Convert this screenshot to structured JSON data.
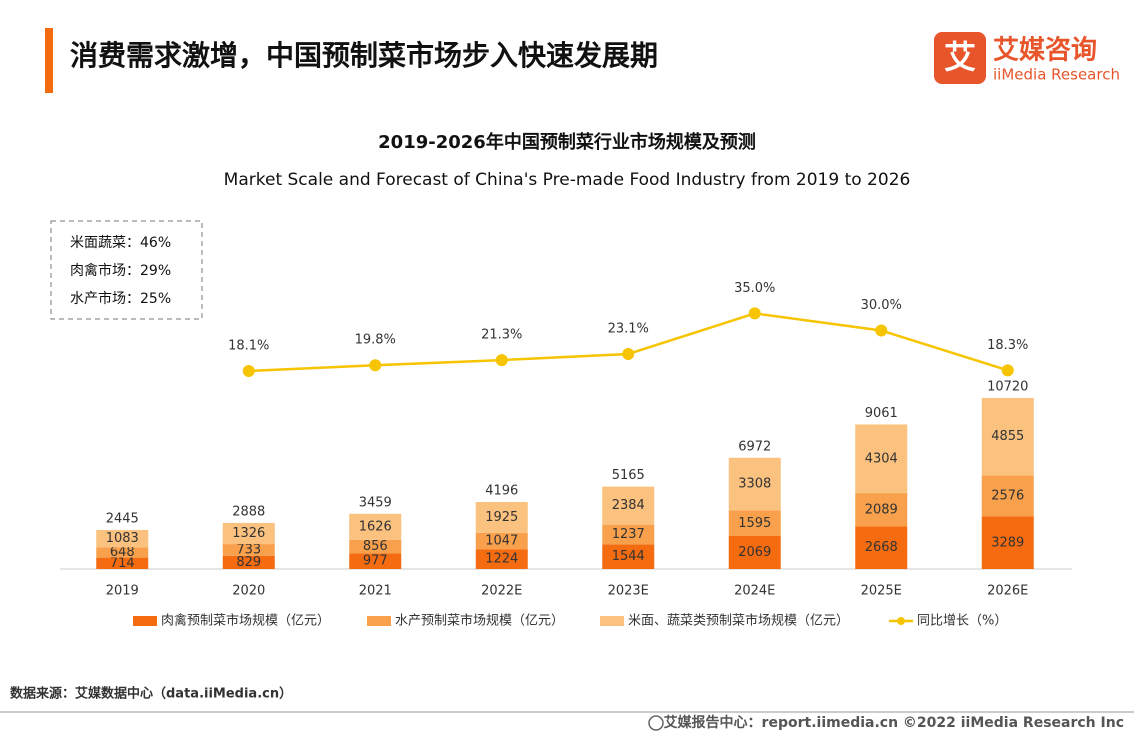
{
  "header": {
    "title": "消费需求激增，中国预制菜市场步入快速发展期",
    "logo_cn": "艾媒咨询",
    "logo_en": "iiMedia Research",
    "logo_mark": "艾"
  },
  "chart_data": {
    "type": "bar",
    "stacked": true,
    "title": "2019-2026年中国预制菜行业市场规模及预测",
    "subtitle": "Market Scale and Forecast of China's Pre-made Food Industry from 2019 to 2026",
    "categories": [
      "2019",
      "2020",
      "2021",
      "2022E",
      "2023E",
      "2024E",
      "2025E",
      "2026E"
    ],
    "series": [
      {
        "name": "肉禽预制菜市场规模（亿元）",
        "type": "bar",
        "color": "#f46b10",
        "values": [
          714,
          829,
          977,
          1224,
          1544,
          2069,
          2668,
          3289
        ]
      },
      {
        "name": "水产预制菜市场规模（亿元）",
        "type": "bar",
        "color": "#f8a04c",
        "values": [
          648,
          733,
          856,
          1047,
          1237,
          1595,
          2089,
          2576
        ]
      },
      {
        "name": "米面、蔬菜类预制菜市场规模（亿元）",
        "type": "bar",
        "color": "#fbc17f",
        "values": [
          1083,
          1326,
          1626,
          1925,
          2384,
          3308,
          4304,
          4855
        ]
      },
      {
        "name": "同比增长（%）",
        "type": "line",
        "axis": "y2",
        "color": "#f6c400",
        "values": [
          null,
          18.1,
          19.8,
          21.3,
          23.1,
          35.0,
          30.0,
          18.3
        ],
        "value_labels": [
          null,
          "18.1%",
          "19.8%",
          "21.3%",
          "23.1%",
          "35.0%",
          "30.0%",
          "18.3%"
        ]
      }
    ],
    "totals": [
      2445,
      2888,
      3459,
      4196,
      5165,
      6972,
      9061,
      10720
    ],
    "ylim": [
      0,
      22000
    ],
    "y2lim": [
      -40,
      63
    ],
    "note": [
      "米面蔬菜：46%",
      "肉禽市场：29%",
      "水产市场：25%"
    ]
  },
  "source": "数据来源：艾媒数据中心（data.iiMedia.cn）",
  "footer": "艾媒报告中心：report.iimedia.cn  ©2022  iiMedia Research  Inc"
}
